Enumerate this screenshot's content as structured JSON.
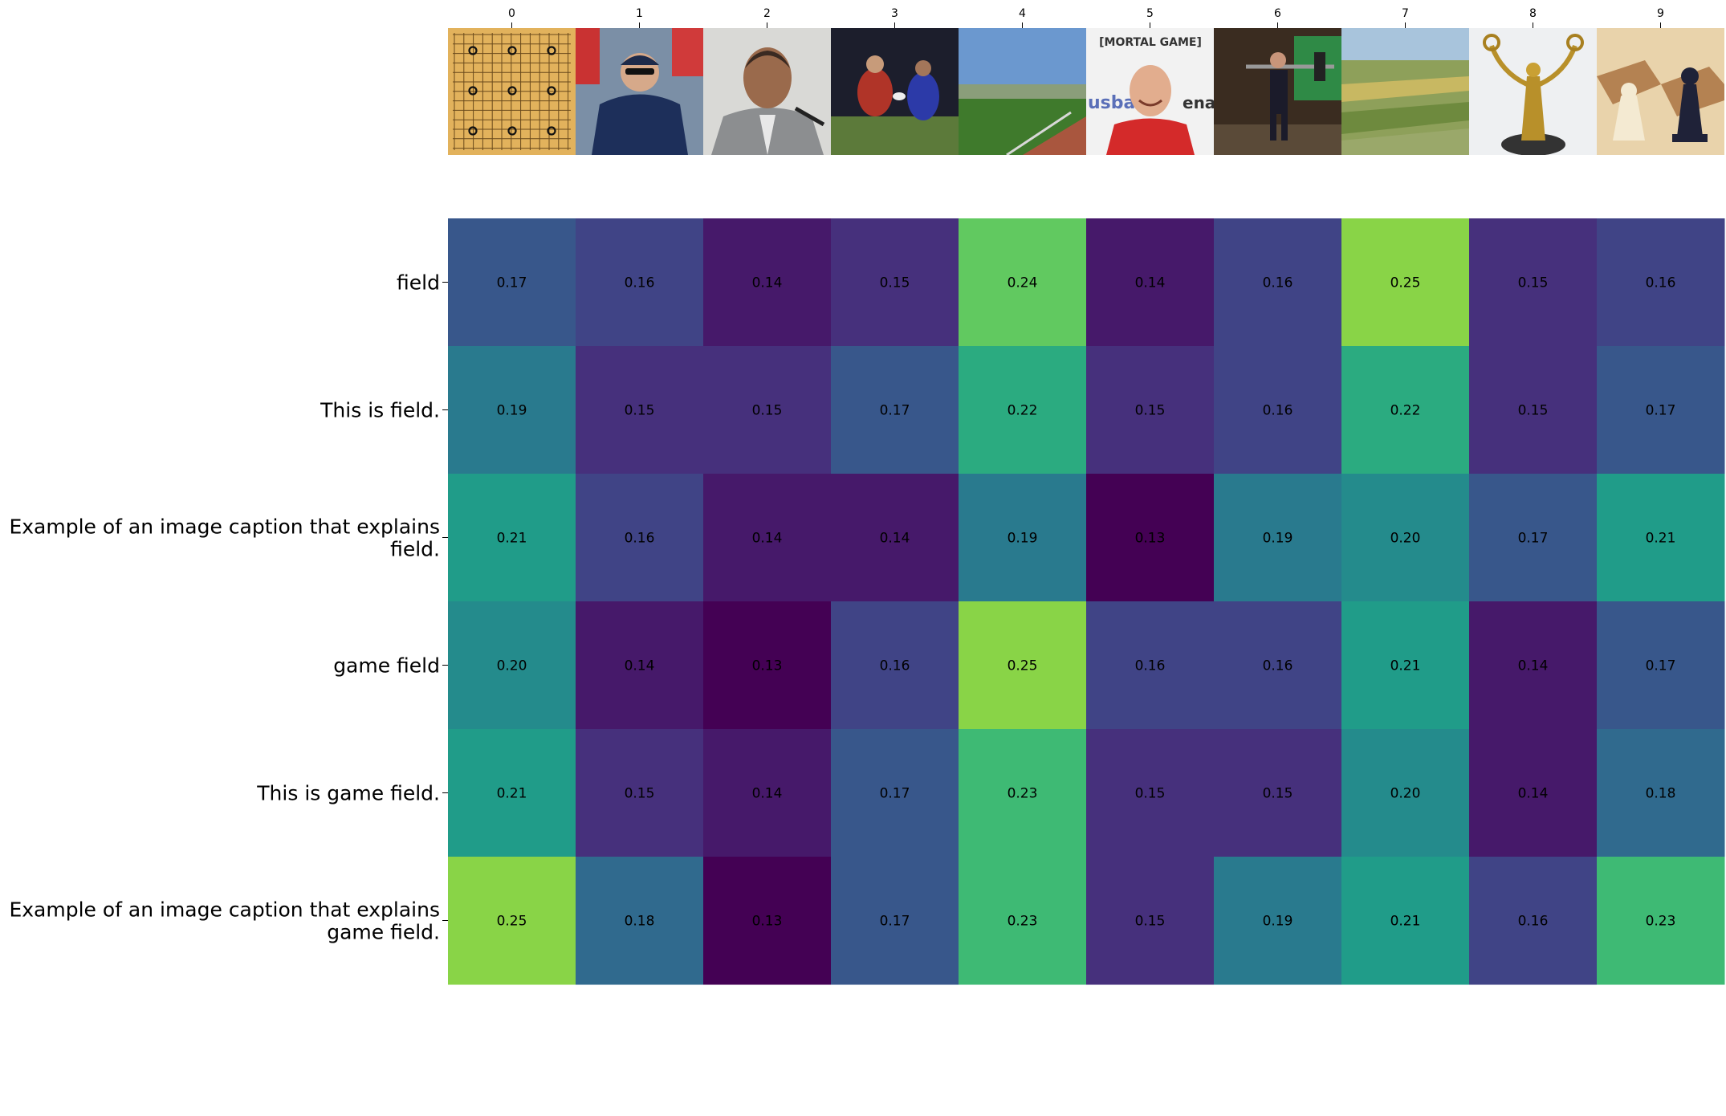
{
  "chart_data": {
    "type": "heatmap",
    "title": "",
    "xlabel": "",
    "ylabel": "",
    "x_ticks": [
      "0",
      "1",
      "2",
      "3",
      "4",
      "5",
      "6",
      "7",
      "8",
      "9"
    ],
    "row_labels": [
      [
        "field"
      ],
      [
        "This is field."
      ],
      [
        "Example of an image caption that explains",
        "field."
      ],
      [
        "game field"
      ],
      [
        "This is game field."
      ],
      [
        "Example of an image caption that explains",
        "game field."
      ]
    ],
    "image_thumbnails": [
      "go-board-image",
      "baseball-fan-image",
      "man-speaking-at-microphone-image",
      "rugby-players-image",
      "sports-stadium-image",
      "smiling-man-at-arena-image",
      "weightlifter-image",
      "farmland-fields-image",
      "golden-statue-image",
      "chess-pieces-image"
    ],
    "colormap": "viridis",
    "color_range": [
      0.13,
      0.25
    ],
    "values": [
      [
        0.17,
        0.16,
        0.14,
        0.15,
        0.24,
        0.14,
        0.16,
        0.25,
        0.15,
        0.16
      ],
      [
        0.19,
        0.15,
        0.15,
        0.17,
        0.22,
        0.15,
        0.16,
        0.22,
        0.15,
        0.17
      ],
      [
        0.21,
        0.16,
        0.14,
        0.14,
        0.19,
        0.13,
        0.19,
        0.2,
        0.17,
        0.21
      ],
      [
        0.2,
        0.14,
        0.13,
        0.16,
        0.25,
        0.16,
        0.16,
        0.21,
        0.14,
        0.17
      ],
      [
        0.21,
        0.15,
        0.14,
        0.17,
        0.23,
        0.15,
        0.15,
        0.2,
        0.14,
        0.18
      ],
      [
        0.25,
        0.18,
        0.13,
        0.17,
        0.23,
        0.15,
        0.19,
        0.21,
        0.16,
        0.23
      ]
    ],
    "colors": {
      "viridis_stops": [
        "#440154",
        "#482878",
        "#3e4989",
        "#31688e",
        "#26828e",
        "#1f9e89",
        "#35b779",
        "#6ece58",
        "#b5de2b",
        "#fde725"
      ]
    }
  }
}
